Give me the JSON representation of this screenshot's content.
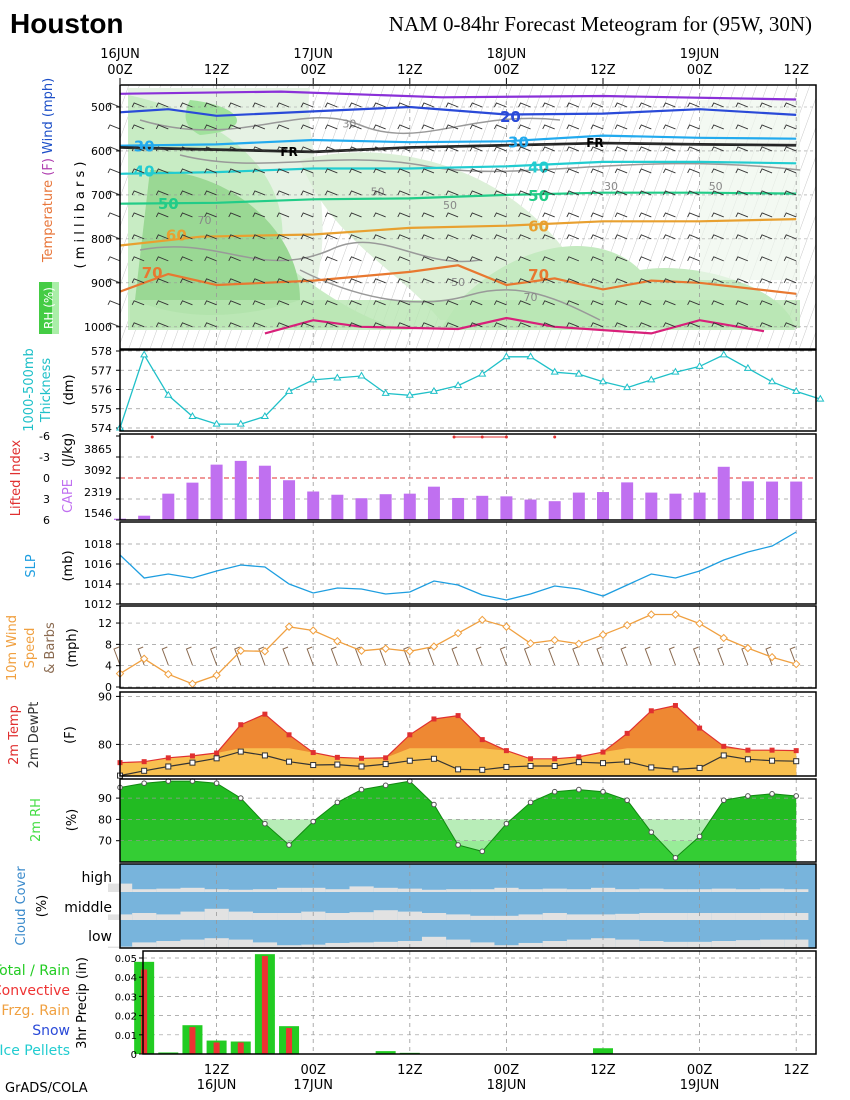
{
  "header": {
    "station": "Houston",
    "title": "NAM 0-84hr Forecast Meteogram for (95W, 30N)",
    "credit": "GrADS/COLA"
  },
  "time_axis": {
    "top_ticks": [
      {
        "hour": 0,
        "top": "16JUN",
        "bottom": "00Z"
      },
      {
        "hour": 12,
        "top": "",
        "bottom": "12Z"
      },
      {
        "hour": 24,
        "top": "17JUN",
        "bottom": "00Z"
      },
      {
        "hour": 36,
        "top": "",
        "bottom": "12Z"
      },
      {
        "hour": 48,
        "top": "18JUN",
        "bottom": "00Z"
      },
      {
        "hour": 60,
        "top": "",
        "bottom": "12Z"
      },
      {
        "hour": 72,
        "top": "19JUN",
        "bottom": "00Z"
      },
      {
        "hour": 84,
        "top": "",
        "bottom": "12Z"
      }
    ],
    "bottom_ticks": [
      {
        "hour": 12,
        "top": "12Z",
        "bottom": "16JUN"
      },
      {
        "hour": 24,
        "top": "00Z",
        "bottom": "17JUN"
      },
      {
        "hour": 36,
        "top": "12Z",
        "bottom": ""
      },
      {
        "hour": 48,
        "top": "00Z",
        "bottom": "18JUN"
      },
      {
        "hour": 60,
        "top": "12Z",
        "bottom": ""
      },
      {
        "hour": 72,
        "top": "00Z",
        "bottom": "19JUN"
      },
      {
        "hour": 84,
        "top": "12Z",
        "bottom": ""
      }
    ]
  },
  "colors": {
    "temp_ylabel": "#e8763a",
    "thickness": "#1fc0c8",
    "lifted_index": "#e03030",
    "cape": "#c070f0",
    "slp": "#1e9ee0",
    "wind": "#f0a040",
    "temp2m": "#f08030",
    "temp_fill": "#ee8833",
    "dewpt_fill": "#f8c050",
    "rh_green": "#22bb22",
    "cloud_blue": "#78b4dc",
    "cloud_grey": "#e2e2e2",
    "precip_total": "#22cc22",
    "precip_conv": "#ee3333"
  },
  "upper_air": {
    "ylabel_parts": [
      {
        "text": "Temperature",
        "color": "#e8763a"
      },
      {
        "text": " (F) ",
        "color": "#b040b0"
      },
      {
        "text": "Wind (mph)",
        "color": "#1e50c8"
      }
    ],
    "pressure_label": "( m i l l i b a r s )",
    "rh_label": "RH (%)",
    "pressure_levels": [
      500,
      600,
      700,
      800,
      900,
      1000
    ],
    "isotherm_labels": [
      {
        "value": "20",
        "color": "#2a4ad8",
        "hour": 48.5,
        "mb": 520
      },
      {
        "value": "30",
        "color": "#22aaee",
        "hour": 3,
        "mb": 588
      },
      {
        "value": "30",
        "color": "#22aaee",
        "hour": 49.5,
        "mb": 578
      },
      {
        "value": "40",
        "color": "#22ccd0",
        "hour": 3,
        "mb": 644
      },
      {
        "value": "40",
        "color": "#22ccd0",
        "hour": 52,
        "mb": 635
      },
      {
        "value": "50",
        "color": "#22cc88",
        "hour": 6,
        "mb": 718
      },
      {
        "value": "50",
        "color": "#22cc88",
        "hour": 52,
        "mb": 700
      },
      {
        "value": "60",
        "color": "#e8a030",
        "hour": 7,
        "mb": 790
      },
      {
        "value": "60",
        "color": "#e8a030",
        "hour": 52,
        "mb": 770
      },
      {
        "value": "70",
        "color": "#e87830",
        "hour": 4,
        "mb": 875
      },
      {
        "value": "70",
        "color": "#e87830",
        "hour": 52,
        "mb": 880
      }
    ],
    "freezing_labels": [
      {
        "text": "FR",
        "hour": 21,
        "mb": 600
      },
      {
        "text": "FR",
        "hour": 59,
        "mb": 580
      }
    ],
    "rh_contour_labels": [
      {
        "text": "30",
        "hour": 28.5,
        "mb": 537
      },
      {
        "text": "50",
        "hour": 32,
        "mb": 692
      },
      {
        "text": "50",
        "hour": 41,
        "mb": 723
      },
      {
        "text": "70",
        "hour": 10.5,
        "mb": 757
      },
      {
        "text": "50",
        "hour": 42,
        "mb": 898
      },
      {
        "text": "30",
        "hour": 61,
        "mb": 680
      },
      {
        "text": "50",
        "hour": 74,
        "mb": 680
      },
      {
        "text": "70",
        "hour": 51,
        "mb": 932
      }
    ]
  },
  "thickness": {
    "label_line1": "1000-500mb",
    "label_line2": "Thickness",
    "unit": "(dm)",
    "yticks": [
      574,
      575,
      576,
      577,
      578
    ]
  },
  "lifted_cape": {
    "li_label": "Lifted Index",
    "cape_label": "CAPE",
    "unit": "(J/kg)",
    "li_ticks": [
      "-6",
      "-3",
      "0",
      "3",
      "6"
    ],
    "cape_ticks": [
      "3865",
      "3092",
      "2319",
      "1546"
    ]
  },
  "slp": {
    "label": "SLP",
    "unit": "(mb)",
    "yticks": [
      1012,
      1014,
      1016,
      1018
    ]
  },
  "wind10m": {
    "label_line1": "10m Wind",
    "label_line2": "Speed",
    "label_line3": "& Barbs",
    "unit": "(mph)",
    "yticks": [
      0,
      4,
      8,
      12
    ]
  },
  "temp2m": {
    "label_temp": "2m Temp",
    "label_dew": "2m DewPt",
    "unit": "(F)",
    "yticks": [
      80,
      90
    ]
  },
  "rh2m": {
    "label": "2m RH",
    "unit": "(%)",
    "yticks": [
      70,
      80,
      90
    ]
  },
  "cloud": {
    "label": "Cloud Cover",
    "unit": "(%)",
    "levels": [
      "high",
      "middle",
      "low"
    ]
  },
  "precip": {
    "legend": [
      {
        "text": "Total / Rain",
        "color": "#22cc22"
      },
      {
        "text": "Convective",
        "color": "#ee3333"
      },
      {
        "text": "Frzg. Rain",
        "color": "#f0a040"
      },
      {
        "text": "Snow",
        "color": "#2a4ad8"
      },
      {
        "text": "Ice Pellets",
        "color": "#22ccd0"
      }
    ],
    "label": "3hr Precip (in)",
    "yticks": [
      "0",
      "0.01",
      "0.02",
      "0.03",
      "0.04",
      "0.05"
    ]
  },
  "chart_data": [
    {
      "type": "line",
      "title": "1000-500mb Thickness",
      "ylabel": "(dm)",
      "x_hours": [
        0,
        3,
        6,
        9,
        12,
        15,
        18,
        21,
        24,
        27,
        30,
        33,
        36,
        39,
        42,
        45,
        48,
        51,
        54,
        57,
        60,
        63,
        66,
        69,
        72,
        75,
        78,
        81,
        84,
        87
      ],
      "values": [
        574.0,
        577.8,
        575.7,
        574.6,
        574.2,
        574.2,
        574.6,
        575.9,
        576.5,
        576.6,
        576.7,
        575.8,
        575.7,
        575.9,
        576.2,
        576.8,
        577.7,
        577.7,
        576.9,
        576.8,
        576.4,
        576.1,
        576.5,
        576.9,
        577.2,
        577.8,
        577.1,
        576.4,
        575.9,
        575.5
      ],
      "ylim": [
        573.8,
        578
      ]
    },
    {
      "type": "bar",
      "title": "CAPE",
      "ylabel": "(J/kg)",
      "x_hours": [
        0,
        3,
        6,
        9,
        12,
        15,
        18,
        21,
        24,
        27,
        30,
        33,
        36,
        39,
        42,
        45,
        48,
        51,
        54,
        57,
        60,
        63,
        66,
        69,
        72,
        75,
        78,
        81,
        84
      ],
      "values": [
        1450,
        1560,
        2380,
        2790,
        3460,
        3600,
        3420,
        2880,
        2460,
        2340,
        2210,
        2360,
        2380,
        2640,
        2220,
        2300,
        2280,
        2160,
        2100,
        2420,
        2440,
        2800,
        2420,
        2380,
        2420,
        3380,
        2840,
        2830,
        2830
      ],
      "ylim": [
        1400,
        4600
      ],
      "lifted_index_values": [
        -5.7,
        -5.6,
        -5.6
      ]
    },
    {
      "type": "line",
      "title": "SLP",
      "ylabel": "(mb)",
      "x_hours": [
        0,
        3,
        6,
        9,
        12,
        15,
        18,
        21,
        24,
        27,
        30,
        33,
        36,
        39,
        42,
        45,
        48,
        51,
        54,
        57,
        60,
        63,
        66,
        69,
        72,
        75,
        78,
        81,
        84
      ],
      "values": [
        1016.9,
        1014.6,
        1015.0,
        1014.6,
        1015.3,
        1015.9,
        1015.7,
        1014.0,
        1013.1,
        1013.6,
        1013.5,
        1013.0,
        1013.2,
        1014.3,
        1013.9,
        1012.9,
        1012.4,
        1013.0,
        1013.8,
        1013.5,
        1012.8,
        1013.9,
        1015.0,
        1014.6,
        1015.3,
        1016.4,
        1017.2,
        1017.8,
        1019.2
      ],
      "ylim": [
        1012,
        1019.5
      ]
    },
    {
      "type": "line",
      "title": "10m Wind Speed",
      "ylabel": "(mph)",
      "x_hours": [
        0,
        3,
        6,
        9,
        12,
        15,
        18,
        21,
        24,
        27,
        30,
        33,
        36,
        39,
        42,
        45,
        48,
        51,
        54,
        57,
        60,
        63,
        66,
        69,
        72,
        75,
        78,
        81,
        84
      ],
      "values": [
        2.5,
        5.3,
        2.4,
        0.6,
        2.2,
        6.8,
        6.7,
        11.3,
        10.6,
        8.6,
        6.8,
        7.2,
        6.7,
        7.6,
        10.1,
        12.6,
        11.3,
        8.2,
        8.8,
        8.1,
        9.8,
        11.6,
        13.6,
        13.6,
        11.9,
        9.2,
        7.3,
        5.6,
        4.3
      ],
      "ylim": [
        0,
        13.8
      ]
    },
    {
      "type": "area",
      "title": "2m Temp / 2m DewPt",
      "ylabel": "(F)",
      "x_hours": [
        0,
        3,
        6,
        9,
        12,
        15,
        18,
        21,
        24,
        27,
        30,
        33,
        36,
        39,
        42,
        45,
        48,
        51,
        54,
        57,
        60,
        63,
        66,
        69,
        72,
        75,
        78,
        81,
        84
      ],
      "series": [
        {
          "name": "2m Temp",
          "values": [
            76.2,
            76.4,
            77.2,
            77.6,
            78.2,
            84.1,
            86.3,
            82.0,
            78.3,
            77.3,
            77.1,
            77.2,
            82.0,
            85.3,
            86.0,
            81.0,
            78.7,
            77.0,
            77.0,
            77.4,
            78.4,
            82.3,
            87.0,
            88.1,
            83.4,
            79.6,
            78.8,
            78.8,
            78.7
          ]
        },
        {
          "name": "2m DewPt",
          "values": [
            73.5,
            74.5,
            75.4,
            76.2,
            77.1,
            78.5,
            77.7,
            76.4,
            75.7,
            75.8,
            75.4,
            75.9,
            76.6,
            77.0,
            74.8,
            74.7,
            75.3,
            75.5,
            75.5,
            76.3,
            76.1,
            76.4,
            75.2,
            74.8,
            75.1,
            77.7,
            76.9,
            76.6,
            76.5
          ]
        }
      ],
      "ylim": [
        73,
        90.5
      ]
    },
    {
      "type": "area",
      "title": "2m RH",
      "ylabel": "(%)",
      "x_hours": [
        0,
        3,
        6,
        9,
        12,
        15,
        18,
        21,
        24,
        27,
        30,
        33,
        36,
        39,
        42,
        45,
        48,
        51,
        54,
        57,
        60,
        63,
        66,
        69,
        72,
        75,
        78,
        81,
        84
      ],
      "values": [
        95,
        97,
        98,
        98,
        97,
        90,
        78,
        68,
        79,
        88,
        94,
        96,
        98,
        87,
        68,
        65,
        78,
        88,
        93,
        94,
        93,
        89,
        74,
        62,
        72,
        89,
        91,
        92,
        91
      ],
      "ylim": [
        60,
        100
      ]
    },
    {
      "type": "area",
      "title": "Cloud Cover",
      "ylabel": "(%)",
      "x_hours": [
        0,
        3,
        6,
        9,
        12,
        15,
        18,
        21,
        24,
        27,
        30,
        33,
        36,
        39,
        42,
        45,
        48,
        51,
        54,
        57,
        60,
        63,
        66,
        69,
        72,
        75,
        78,
        81,
        84
      ],
      "series": [
        {
          "name": "low",
          "values": [
            5,
            20,
            25,
            30,
            35,
            30,
            20,
            10,
            12,
            18,
            20,
            22,
            25,
            40,
            30,
            20,
            10,
            18,
            25,
            30,
            35,
            30,
            25,
            22,
            22,
            25,
            28,
            30,
            30
          ]
        },
        {
          "name": "middle",
          "values": [
            20,
            25,
            20,
            30,
            40,
            30,
            25,
            25,
            30,
            25,
            28,
            35,
            30,
            25,
            20,
            15,
            15,
            20,
            25,
            20,
            20,
            22,
            25,
            25,
            25,
            25,
            25,
            25,
            25
          ]
        },
        {
          "name": "high",
          "values": [
            30,
            10,
            12,
            15,
            10,
            8,
            10,
            15,
            15,
            10,
            20,
            15,
            12,
            8,
            10,
            10,
            15,
            10,
            12,
            10,
            15,
            10,
            12,
            10,
            10,
            12,
            10,
            12,
            10
          ]
        }
      ],
      "ylim": [
        0,
        100
      ]
    },
    {
      "type": "bar",
      "title": "3hr Precip",
      "ylabel": "3hr Precip (in)",
      "x_hours": [
        3,
        6,
        9,
        12,
        15,
        18,
        21,
        24,
        33,
        36,
        39,
        45,
        48,
        51,
        54,
        57,
        60,
        63,
        66,
        69,
        72,
        75,
        78,
        81,
        84
      ],
      "series": [
        {
          "name": "Total / Rain",
          "values": [
            0.048,
            0.0008,
            0.015,
            0.007,
            0.0065,
            0.052,
            0.0145,
            0.0002,
            0.0015,
            0.0006,
            0.0002,
            0,
            0,
            0,
            0,
            0,
            0.003,
            0,
            0,
            0,
            0,
            0,
            0,
            0,
            0
          ]
        },
        {
          "name": "Convective",
          "values": [
            0.044,
            0,
            0.014,
            0.006,
            0.006,
            0.051,
            0.0135,
            0.0002,
            0,
            0,
            0,
            0,
            0,
            0,
            0,
            0,
            0,
            0,
            0,
            0,
            0,
            0,
            0,
            0,
            0
          ]
        }
      ],
      "ylim": [
        0,
        0.055
      ]
    }
  ]
}
